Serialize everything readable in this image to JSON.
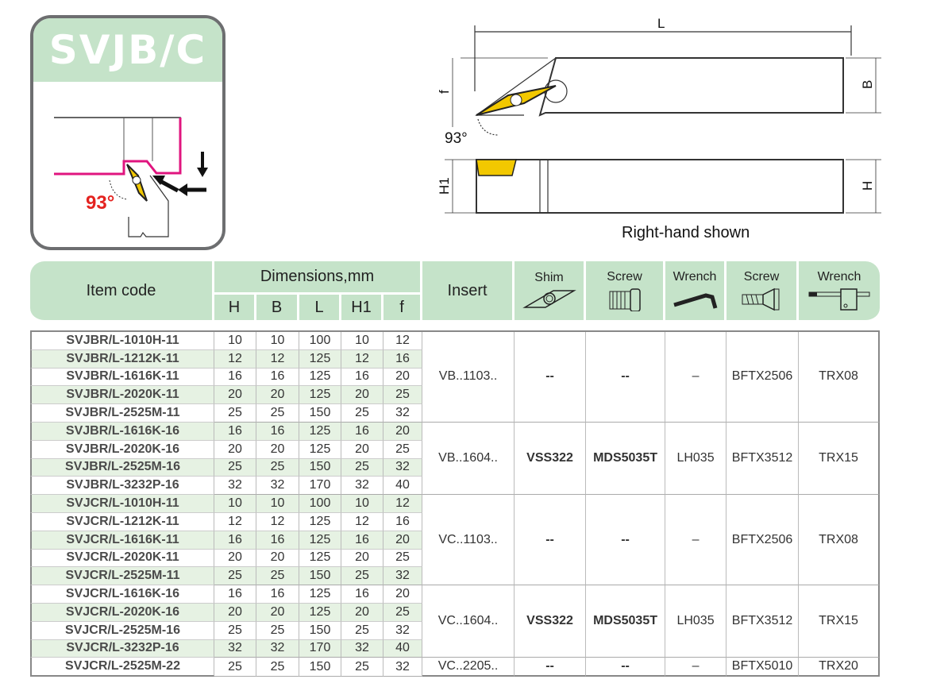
{
  "badge": {
    "title": "SVJB/C",
    "angle": "93°"
  },
  "drawing": {
    "dim_L": "L",
    "dim_B": "B",
    "dim_f": "f",
    "dim_H1": "H1",
    "dim_H": "H",
    "angle": "93°",
    "caption": "Right-hand shown"
  },
  "colors": {
    "header_green": "#c5e3c9",
    "insert_yellow": "#f2c800",
    "magenta": "#e0157f",
    "angle_red": "#e42320"
  },
  "header": {
    "item_code": "Item code",
    "dimensions": "Dimensions,mm",
    "dims": [
      "H",
      "B",
      "L",
      "H1",
      "f"
    ],
    "insert": "Insert",
    "parts": [
      {
        "label": "Shim",
        "icon": "shim-icon"
      },
      {
        "label": "Screw",
        "icon": "shim-screw-icon"
      },
      {
        "label": "Wrench",
        "icon": "hex-wrench-icon"
      },
      {
        "label": "Screw",
        "icon": "torx-screw-icon"
      },
      {
        "label": "Wrench",
        "icon": "torx-wrench-icon"
      }
    ]
  },
  "rows": [
    {
      "code": "SVJBR/L-1010H-11",
      "dims": [
        "10",
        "10",
        "100",
        "10",
        "12"
      ]
    },
    {
      "code": "SVJBR/L-1212K-11",
      "dims": [
        "12",
        "12",
        "125",
        "12",
        "16"
      ]
    },
    {
      "code": "SVJBR/L-1616K-11",
      "dims": [
        "16",
        "16",
        "125",
        "16",
        "20"
      ]
    },
    {
      "code": "SVJBR/L-2020K-11",
      "dims": [
        "20",
        "20",
        "125",
        "20",
        "25"
      ]
    },
    {
      "code": "SVJBR/L-2525M-11",
      "dims": [
        "25",
        "25",
        "150",
        "25",
        "32"
      ]
    },
    {
      "code": "SVJBR/L-1616K-16",
      "dims": [
        "16",
        "16",
        "125",
        "16",
        "20"
      ]
    },
    {
      "code": "SVJBR/L-2020K-16",
      "dims": [
        "20",
        "20",
        "125",
        "20",
        "25"
      ]
    },
    {
      "code": "SVJBR/L-2525M-16",
      "dims": [
        "25",
        "25",
        "150",
        "25",
        "32"
      ]
    },
    {
      "code": "SVJBR/L-3232P-16",
      "dims": [
        "32",
        "32",
        "170",
        "32",
        "40"
      ]
    },
    {
      "code": "SVJCR/L-1010H-11",
      "dims": [
        "10",
        "10",
        "100",
        "10",
        "12"
      ]
    },
    {
      "code": "SVJCR/L-1212K-11",
      "dims": [
        "12",
        "12",
        "125",
        "12",
        "16"
      ]
    },
    {
      "code": "SVJCR/L-1616K-11",
      "dims": [
        "16",
        "16",
        "125",
        "16",
        "20"
      ]
    },
    {
      "code": "SVJCR/L-2020K-11",
      "dims": [
        "20",
        "20",
        "125",
        "20",
        "25"
      ]
    },
    {
      "code": "SVJCR/L-2525M-11",
      "dims": [
        "25",
        "25",
        "150",
        "25",
        "32"
      ]
    },
    {
      "code": "SVJCR/L-1616K-16",
      "dims": [
        "16",
        "16",
        "125",
        "16",
        "20"
      ]
    },
    {
      "code": "SVJCR/L-2020K-16",
      "dims": [
        "20",
        "20",
        "125",
        "20",
        "25"
      ]
    },
    {
      "code": "SVJCR/L-2525M-16",
      "dims": [
        "25",
        "25",
        "150",
        "25",
        "32"
      ]
    },
    {
      "code": "SVJCR/L-3232P-16",
      "dims": [
        "32",
        "32",
        "170",
        "32",
        "40"
      ]
    },
    {
      "code": "SVJCR/L-2525M-22",
      "dims": [
        "25",
        "25",
        "150",
        "25",
        "32"
      ]
    }
  ],
  "groups": [
    {
      "span": 5,
      "insert": "VB..1103..",
      "shim": "--",
      "screw": "--",
      "wrench": "–",
      "screw2": "BFTX2506",
      "wrench2": "TRX08"
    },
    {
      "span": 4,
      "insert": "VB..1604..",
      "shim": "VSS322",
      "screw": "MDS5035T",
      "wrench": "LH035",
      "screw2": "BFTX3512",
      "wrench2": "TRX15"
    },
    {
      "span": 5,
      "insert": "VC..1103..",
      "shim": "--",
      "screw": "--",
      "wrench": "–",
      "screw2": "BFTX2506",
      "wrench2": "TRX08"
    },
    {
      "span": 4,
      "insert": "VC..1604..",
      "shim": "VSS322",
      "screw": "MDS5035T",
      "wrench": "LH035",
      "screw2": "BFTX3512",
      "wrench2": "TRX15"
    },
    {
      "span": 1,
      "insert": "VC..2205..",
      "shim": "--",
      "screw": "--",
      "wrench": "–",
      "screw2": "BFTX5010",
      "wrench2": "TRX20"
    }
  ]
}
